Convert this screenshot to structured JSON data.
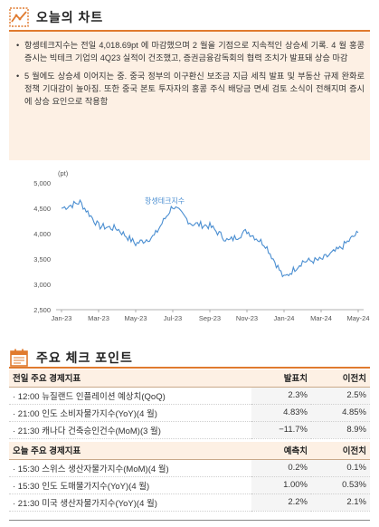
{
  "section1": {
    "title": "오늘의 차트",
    "icon": "line-chart-icon",
    "bullets": [
      "항셍테크지수는 전일 4,018.69pt 에 마감했으며 2 월을 기점으로 지속적인 상승세 기록. 4 월 홍콩 증시는 빅테크 기업의 4Q23 실적이 건조했고, 증권금융감독회의 협력 조치가 발표돼 상승 마감",
      "5 월에도 상승세 이어지는 중. 중국 정부의 이구환신 보조금 지급 세칙 발표 및 부동산 규제 완화로 정책 기대감이 높아짐. 또한 중국 본토 투자자의 홍콩 주식 배당금 면세 검토 소식이 전해지며 증시에 상승 요인으로 작용함"
    ]
  },
  "chart_data": {
    "type": "line",
    "unit_label": "(pt)",
    "series_name": "항셍테크지수",
    "line_color": "#4a8ed1",
    "ylim": [
      2500,
      5000
    ],
    "yticks": [
      "5,000",
      "4,500",
      "4,000",
      "3,500",
      "3,000",
      "2,500"
    ],
    "ytick_values": [
      5000,
      4500,
      4000,
      3500,
      3000,
      2500
    ],
    "xticks": [
      "Jan-23",
      "Mar-23",
      "May-23",
      "Jul-23",
      "Sep-23",
      "Nov-23",
      "Jan-24",
      "Mar-24",
      "May-24"
    ],
    "x": [
      "2023-01",
      "2023-02",
      "2023-03",
      "2023-04",
      "2023-05",
      "2023-06",
      "2023-07",
      "2023-08",
      "2023-09",
      "2023-10",
      "2023-11",
      "2023-12",
      "2024-01",
      "2024-02",
      "2024-03",
      "2024-04",
      "2024-05"
    ],
    "values": [
      4500,
      4620,
      4150,
      4100,
      3800,
      3950,
      4550,
      4200,
      4150,
      3850,
      4050,
      3780,
      3120,
      3450,
      3480,
      3700,
      4020
    ]
  },
  "section2": {
    "title": "주요 체크 포인트",
    "icon": "calendar-check-icon"
  },
  "prev_table": {
    "headers": [
      "전일 주요 경제지표",
      "발표치",
      "이전치"
    ],
    "rows": [
      [
        "· 12:00 뉴질랜드 인플레이션 예상치(QoQ)",
        "2.3%",
        "2.5%"
      ],
      [
        "· 21:00 인도 소비자물가지수(YoY)(4 월)",
        "4.83%",
        "4.85%"
      ],
      [
        "· 21:30 캐나다 건축승인건수(MoM)(3 월)",
        "−11.7%",
        "8.9%"
      ]
    ]
  },
  "today_table": {
    "headers": [
      "오늘 주요 경제지표",
      "예측치",
      "이전치"
    ],
    "rows": [
      [
        "· 15:30 스위스 생산자물가지수(MoM)(4 월)",
        "0.2%",
        "0.1%"
      ],
      [
        "· 15:30 인도 도매물가지수(YoY)(4 월)",
        "1.00%",
        "0.53%"
      ],
      [
        "· 21:30 미국 생산자물가지수(YoY)(4 월)",
        "2.2%",
        "2.1%"
      ]
    ]
  },
  "colors": {
    "accent": "#e07a2e",
    "box_bg": "#fdf0e4",
    "line": "#4a8ed1"
  }
}
